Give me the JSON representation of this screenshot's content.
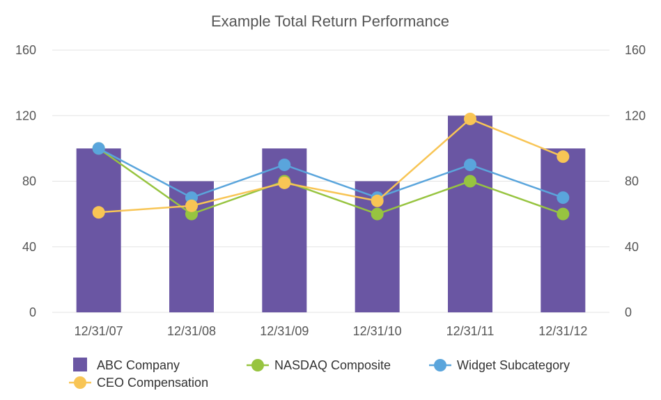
{
  "chart_data": {
    "type": "bar",
    "title": "Example Total Return Performance",
    "categories": [
      "12/31/07",
      "12/31/08",
      "12/31/09",
      "12/31/10",
      "12/31/11",
      "12/31/12"
    ],
    "ylim": [
      0,
      160
    ],
    "yticks": [
      "0",
      "40",
      "80",
      "120",
      "160"
    ],
    "grid": true,
    "legend_position": "bottom",
    "series": [
      {
        "name": "ABC Company",
        "type": "bar",
        "color": "#6a56a3",
        "values": [
          100,
          80,
          100,
          80,
          120,
          100
        ]
      },
      {
        "name": "NASDAQ Composite",
        "type": "line",
        "color": "#97c440",
        "values": [
          100,
          60,
          80,
          60,
          80,
          60
        ]
      },
      {
        "name": "Widget Subcategory",
        "type": "line",
        "color": "#5aa5dc",
        "values": [
          100,
          70,
          90,
          70,
          90,
          70
        ]
      },
      {
        "name": "CEO Compensation",
        "type": "line",
        "color": "#f8c555",
        "values": [
          61,
          65,
          79,
          68,
          118,
          95
        ]
      }
    ]
  }
}
